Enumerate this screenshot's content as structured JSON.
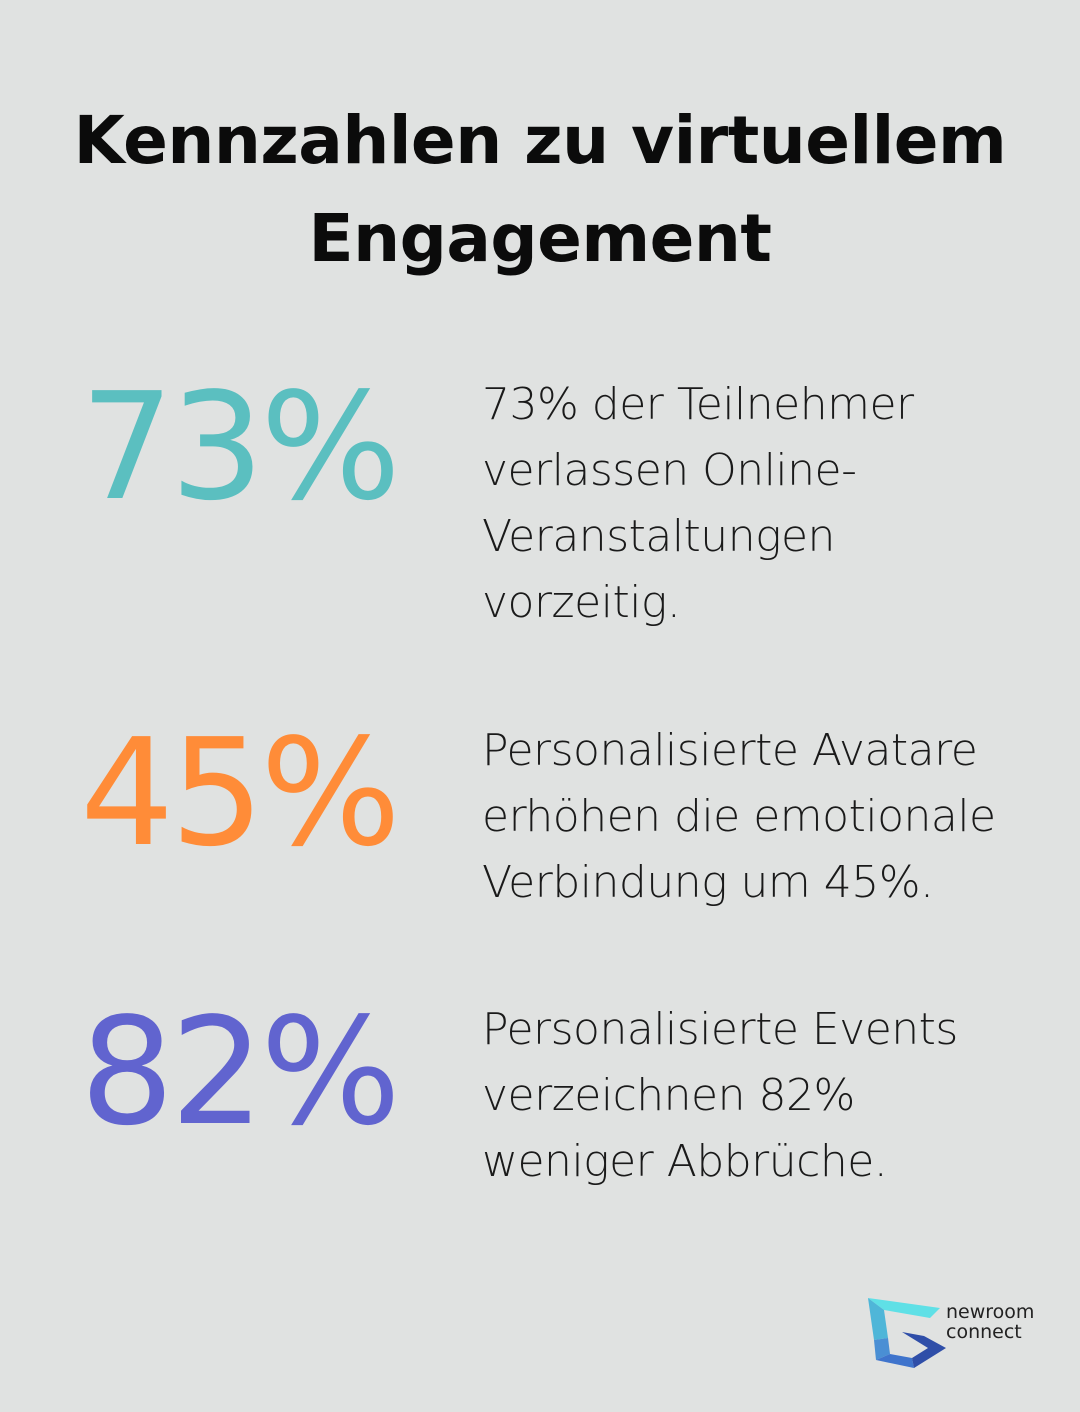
{
  "title": "Kennzahlen zu virtuellem Engagement",
  "stats": [
    {
      "value": "73%",
      "color": "#5bbfc0",
      "description": "73% der Teilnehmer verlassen Online-Veranstaltungen vorzeitig."
    },
    {
      "value": "45%",
      "color": "#ff8c38",
      "description": "Personalisierte Avatare erhöhen die emotionale Verbindung um 45%."
    },
    {
      "value": "82%",
      "color": "#6164cf",
      "description": "Personalisierte Events verzeichnen 82% weniger Abbrüche."
    }
  ],
  "logo": {
    "line1": "newroom",
    "line2": "connect"
  }
}
